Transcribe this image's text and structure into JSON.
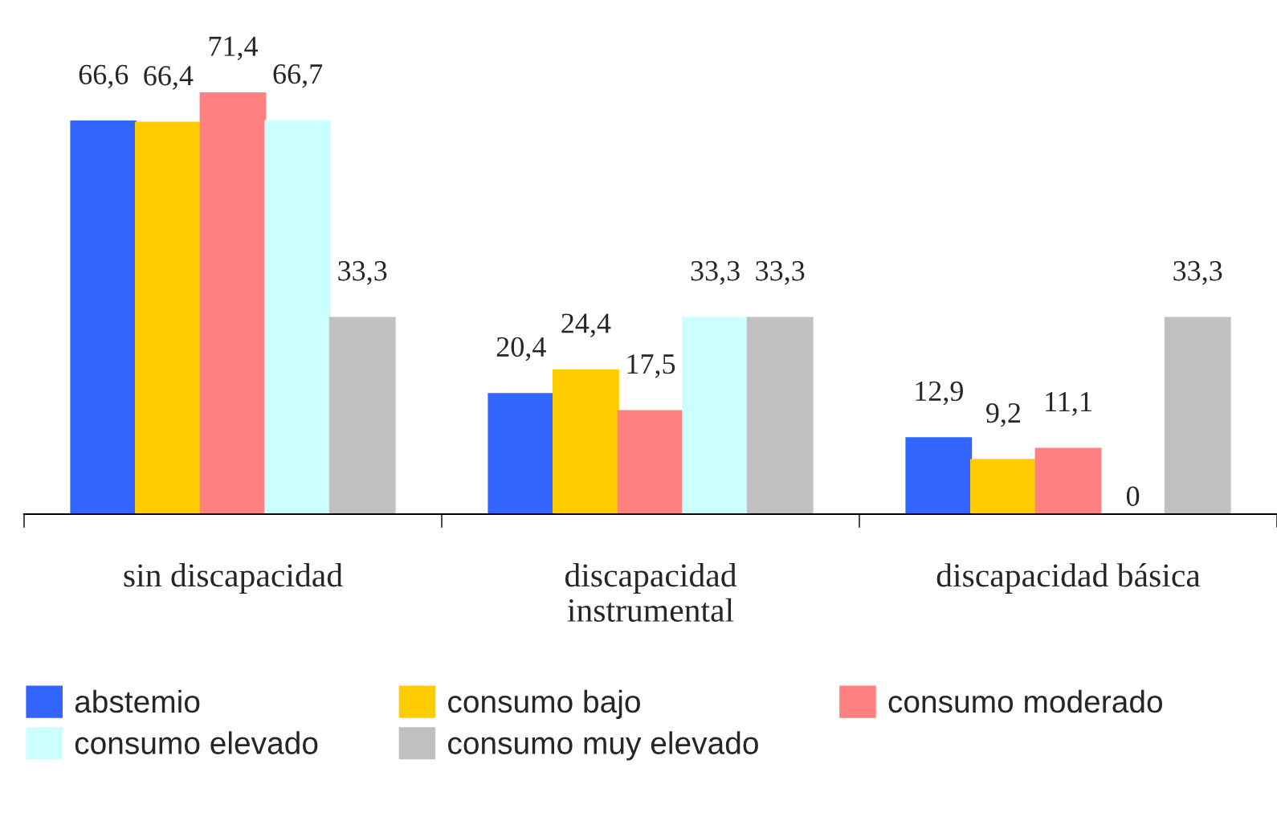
{
  "chart_data": {
    "type": "bar",
    "categories": [
      "sin discapacidad",
      "discapacidad\ninstrumental",
      "discapacidad básica"
    ],
    "series": [
      {
        "name": "abstemio",
        "color": "#3366ff",
        "values": [
          66.6,
          20.4,
          12.9
        ],
        "value_labels": [
          "66,6",
          "20,4",
          "12,9"
        ]
      },
      {
        "name": "consumo bajo",
        "color": "#ffcc00",
        "values": [
          66.4,
          24.4,
          9.2
        ],
        "value_labels": [
          "66,4",
          "24,4",
          "9,2"
        ]
      },
      {
        "name": "consumo moderado",
        "color": "#ff8080",
        "values": [
          71.4,
          17.5,
          11.1
        ],
        "value_labels": [
          "71,4",
          "17,5",
          "11,1"
        ]
      },
      {
        "name": "consumo elevado",
        "color": "#ccffff",
        "values": [
          66.7,
          33.3,
          0
        ],
        "value_labels": [
          "66,7",
          "33,3",
          "0"
        ]
      },
      {
        "name": "consumo muy elevado",
        "color": "#c0c0c0",
        "values": [
          33.3,
          33.3,
          33.3
        ],
        "value_labels": [
          "33,3",
          "33,3",
          "33,3"
        ]
      }
    ],
    "grid": false,
    "legend": "bottom"
  }
}
